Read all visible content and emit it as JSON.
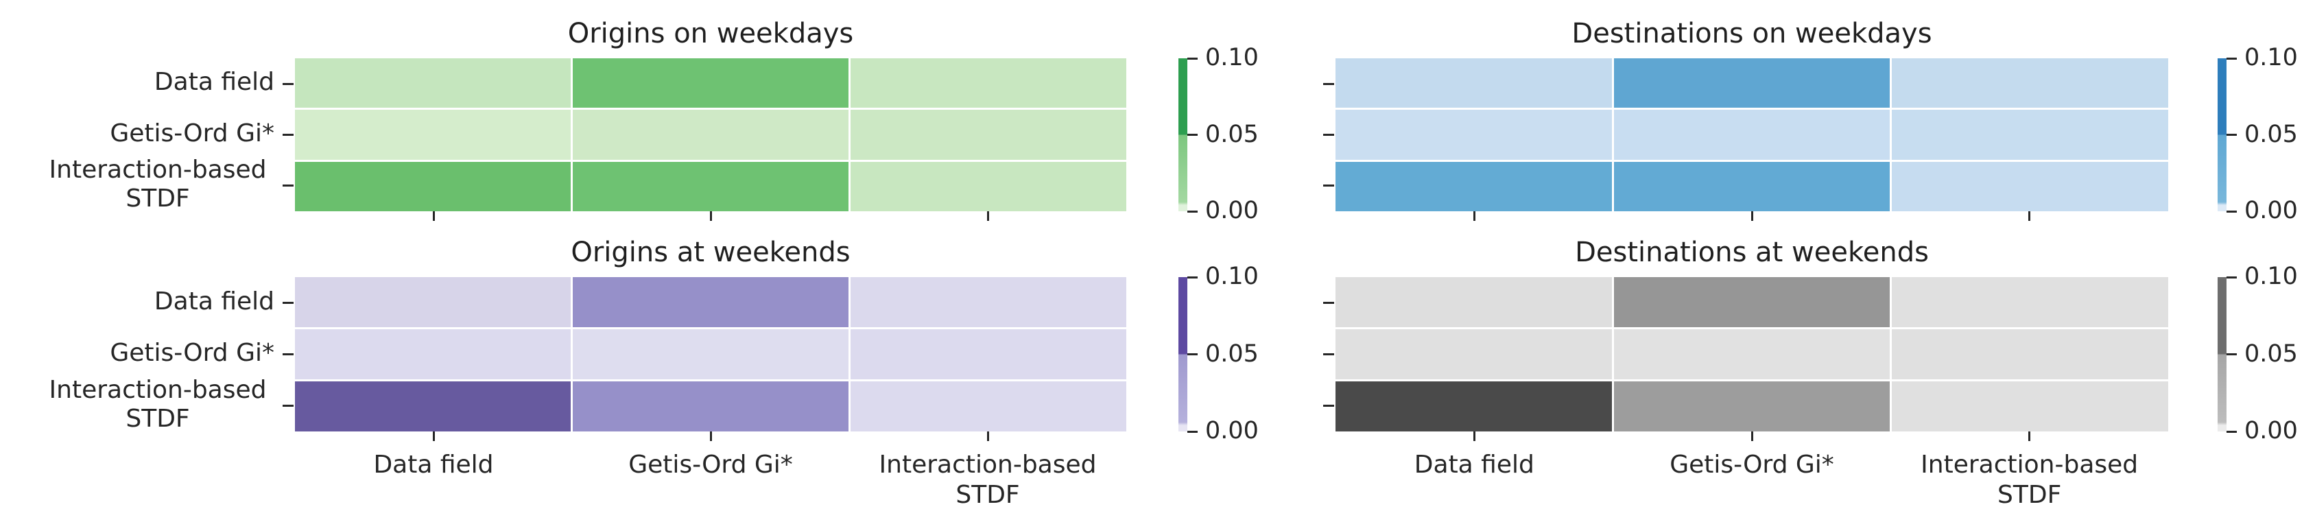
{
  "shared": {
    "row_labels": [
      "Data field",
      "Getis-Ord Gi*",
      "Interaction-based\nSTDF"
    ],
    "col_labels": [
      "Data field",
      "Getis-Ord Gi*",
      "Interaction-based\nSTDF"
    ],
    "colorbar_tick_labels": [
      "0.10",
      "0.05",
      "0.00"
    ]
  },
  "chart_data": [
    {
      "type": "heatmap",
      "title": "Origins on weekdays",
      "rows": [
        "Data field",
        "Getis-Ord Gi*",
        "Interaction-based STDF"
      ],
      "cols": [
        "Data field",
        "Getis-Ord Gi*",
        "Interaction-based STDF"
      ],
      "values": [
        [
          0.02,
          0.05,
          0.02
        ],
        [
          0.015,
          0.015,
          0.015
        ],
        [
          0.05,
          0.05,
          0.02
        ]
      ],
      "cell_colors": [
        [
          "#c5e6be",
          "#6ec272",
          "#c8e7c0"
        ],
        [
          "#d5edcc",
          "#cfe9c6",
          "#cce8c4"
        ],
        [
          "#6abf6d",
          "#6ec272",
          "#c8e7c0"
        ]
      ],
      "vmin": 0.0,
      "vmax": 0.1,
      "colorbar_ticks": [
        0.1,
        0.05,
        0.0
      ],
      "colorbar_colors": {
        "high": "#2d9e4f",
        "mid": "#7dc77f",
        "mid_light": "#a3d8a1",
        "low": "#e0f2dc"
      },
      "row_labels_visible": true,
      "col_labels_visible": false
    },
    {
      "type": "heatmap",
      "title": "Destinations on weekdays",
      "rows": [
        "Data field",
        "Getis-Ord Gi*",
        "Interaction-based STDF"
      ],
      "cols": [
        "Data field",
        "Getis-Ord Gi*",
        "Interaction-based STDF"
      ],
      "values": [
        [
          0.02,
          0.055,
          0.02
        ],
        [
          0.015,
          0.015,
          0.015
        ],
        [
          0.055,
          0.055,
          0.02
        ]
      ],
      "cell_colors": [
        [
          "#c3daee",
          "#5fa6d2",
          "#c4dbee"
        ],
        [
          "#cadef1",
          "#c8ddf1",
          "#c7ddf0"
        ],
        [
          "#63abd4",
          "#62aad4",
          "#c6dcf0"
        ]
      ],
      "vmin": 0.0,
      "vmax": 0.1,
      "colorbar_ticks": [
        0.1,
        0.05,
        0.0
      ],
      "colorbar_colors": {
        "high": "#2e7ebc",
        "mid": "#5fa8d3",
        "mid_light": "#79b7db",
        "low": "#ddeaf7"
      },
      "row_labels_visible": false,
      "col_labels_visible": false
    },
    {
      "type": "heatmap",
      "title": "Origins at weekends",
      "rows": [
        "Data field",
        "Getis-Ord Gi*",
        "Interaction-based STDF"
      ],
      "cols": [
        "Data field",
        "Getis-Ord Gi*",
        "Interaction-based STDF"
      ],
      "values": [
        [
          0.02,
          0.05,
          0.015
        ],
        [
          0.015,
          0.015,
          0.015
        ],
        [
          0.075,
          0.05,
          0.015
        ]
      ],
      "cell_colors": [
        [
          "#d7d4e9",
          "#9690c9",
          "#dbd9ed"
        ],
        [
          "#dcdaee",
          "#deddef",
          "#dcdaee"
        ],
        [
          "#675a9f",
          "#9690c9",
          "#dcdaee"
        ]
      ],
      "vmin": 0.0,
      "vmax": 0.1,
      "colorbar_ticks": [
        0.1,
        0.05,
        0.0
      ],
      "colorbar_colors": {
        "high": "#5d49a1",
        "mid": "#9f99cf",
        "mid_light": "#b5b1dc",
        "low": "#e7e5f3"
      },
      "row_labels_visible": true,
      "col_labels_visible": true
    },
    {
      "type": "heatmap",
      "title": "Destinations at weekends",
      "rows": [
        "Data field",
        "Getis-Ord Gi*",
        "Interaction-based STDF"
      ],
      "cols": [
        "Data field",
        "Getis-Ord Gi*",
        "Interaction-based STDF"
      ],
      "values": [
        [
          0.02,
          0.05,
          0.015
        ],
        [
          0.015,
          0.015,
          0.015
        ],
        [
          0.09,
          0.05,
          0.015
        ]
      ],
      "cell_colors": [
        [
          "#dedede",
          "#969696",
          "#e0e0e0"
        ],
        [
          "#e0e0e0",
          "#e1e1e1",
          "#e0e0e0"
        ],
        [
          "#4a4a4a",
          "#9d9d9d",
          "#e0e0e0"
        ]
      ],
      "vmin": 0.0,
      "vmax": 0.1,
      "colorbar_ticks": [
        0.1,
        0.05,
        0.0
      ],
      "colorbar_colors": {
        "high": "#6e6e6e",
        "mid": "#a6a6a6",
        "mid_light": "#bdbdbd",
        "low": "#ececec"
      },
      "row_labels_visible": false,
      "col_labels_visible": true
    }
  ]
}
